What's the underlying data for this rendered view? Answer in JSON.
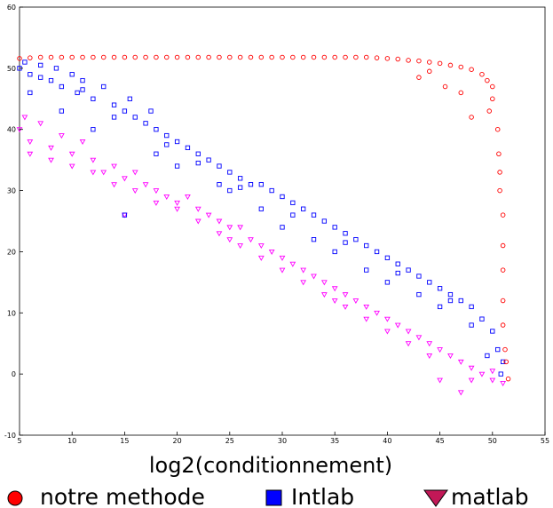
{
  "chart_data": {
    "type": "scatter",
    "title": "",
    "xlabel": "log2(conditionnement)",
    "ylabel": "",
    "xlim": [
      5,
      55
    ],
    "ylim": [
      -10,
      60
    ],
    "xticks": [
      5,
      10,
      15,
      20,
      25,
      30,
      35,
      40,
      45,
      50,
      55
    ],
    "yticks": [
      -10,
      0,
      10,
      20,
      30,
      40,
      50,
      60
    ],
    "grid": false,
    "legend_position": "bottom",
    "series": [
      {
        "name": "notre methode",
        "marker": "circle",
        "color": "#ff0000",
        "points": [
          [
            5,
            51.6
          ],
          [
            6,
            51.7
          ],
          [
            7,
            51.8
          ],
          [
            8,
            51.8
          ],
          [
            9,
            51.8
          ],
          [
            10,
            51.8
          ],
          [
            11,
            51.8
          ],
          [
            12,
            51.8
          ],
          [
            13,
            51.8
          ],
          [
            14,
            51.8
          ],
          [
            15,
            51.8
          ],
          [
            16,
            51.8
          ],
          [
            17,
            51.8
          ],
          [
            18,
            51.8
          ],
          [
            19,
            51.8
          ],
          [
            20,
            51.8
          ],
          [
            21,
            51.8
          ],
          [
            22,
            51.8
          ],
          [
            23,
            51.8
          ],
          [
            24,
            51.8
          ],
          [
            25,
            51.8
          ],
          [
            26,
            51.8
          ],
          [
            27,
            51.8
          ],
          [
            28,
            51.8
          ],
          [
            29,
            51.8
          ],
          [
            30,
            51.8
          ],
          [
            31,
            51.8
          ],
          [
            32,
            51.8
          ],
          [
            33,
            51.8
          ],
          [
            34,
            51.8
          ],
          [
            35,
            51.8
          ],
          [
            36,
            51.8
          ],
          [
            37,
            51.8
          ],
          [
            38,
            51.8
          ],
          [
            39,
            51.7
          ],
          [
            40,
            51.6
          ],
          [
            41,
            51.5
          ],
          [
            42,
            51.3
          ],
          [
            43,
            51.2
          ],
          [
            44,
            51
          ],
          [
            45,
            50.8
          ],
          [
            46,
            50.5
          ],
          [
            47,
            50.2
          ],
          [
            48,
            49.8
          ],
          [
            49,
            49
          ],
          [
            49.5,
            48
          ],
          [
            50,
            47
          ],
          [
            50,
            45
          ],
          [
            50.5,
            40
          ],
          [
            50.6,
            36
          ],
          [
            50.7,
            33
          ],
          [
            50.7,
            30
          ],
          [
            51,
            26
          ],
          [
            51,
            21
          ],
          [
            51,
            17
          ],
          [
            51,
            12
          ],
          [
            51,
            8
          ],
          [
            51.2,
            4
          ],
          [
            51.3,
            2
          ],
          [
            51.5,
            -0.8
          ],
          [
            48,
            42
          ],
          [
            49.7,
            43
          ],
          [
            45.5,
            47
          ],
          [
            44,
            49.5
          ],
          [
            43,
            48.5
          ],
          [
            47,
            46
          ]
        ]
      },
      {
        "name": "Intlab",
        "marker": "square",
        "color": "#0000ff",
        "points": [
          [
            5,
            50
          ],
          [
            5.5,
            51
          ],
          [
            6,
            49
          ],
          [
            7,
            50.5
          ],
          [
            8,
            48
          ],
          [
            8.5,
            50
          ],
          [
            9,
            47
          ],
          [
            10,
            49
          ],
          [
            10.5,
            46
          ],
          [
            11,
            48
          ],
          [
            12,
            45
          ],
          [
            13,
            47
          ],
          [
            14,
            44
          ],
          [
            15,
            43
          ],
          [
            15.5,
            45
          ],
          [
            16,
            42
          ],
          [
            17,
            41
          ],
          [
            17.5,
            43
          ],
          [
            18,
            40
          ],
          [
            19,
            39
          ],
          [
            20,
            38
          ],
          [
            21,
            37
          ],
          [
            22,
            36
          ],
          [
            23,
            35
          ],
          [
            24,
            34
          ],
          [
            25,
            33
          ],
          [
            26,
            32
          ],
          [
            27,
            31
          ],
          [
            28,
            31
          ],
          [
            29,
            30
          ],
          [
            30,
            29
          ],
          [
            31,
            28
          ],
          [
            32,
            27
          ],
          [
            33,
            26
          ],
          [
            34,
            25
          ],
          [
            35,
            24
          ],
          [
            36,
            23
          ],
          [
            37,
            22
          ],
          [
            38,
            21
          ],
          [
            39,
            20
          ],
          [
            40,
            19
          ],
          [
            41,
            18
          ],
          [
            42,
            17
          ],
          [
            43,
            16
          ],
          [
            44,
            15
          ],
          [
            45,
            14
          ],
          [
            46,
            13
          ],
          [
            47,
            12
          ],
          [
            48,
            11
          ],
          [
            49,
            9
          ],
          [
            50,
            7
          ],
          [
            50.5,
            4
          ],
          [
            51,
            2
          ],
          [
            15,
            26
          ],
          [
            20,
            34
          ],
          [
            25,
            30
          ],
          [
            30,
            24
          ],
          [
            35,
            20
          ],
          [
            40,
            15
          ],
          [
            45,
            11
          ],
          [
            6,
            46
          ],
          [
            9,
            43
          ],
          [
            12,
            40
          ],
          [
            18,
            36
          ],
          [
            24,
            31
          ],
          [
            28,
            27
          ],
          [
            33,
            22
          ],
          [
            38,
            17
          ],
          [
            43,
            13
          ],
          [
            48,
            8
          ],
          [
            7,
            48.5
          ],
          [
            11,
            46.5
          ],
          [
            14,
            42
          ],
          [
            19,
            37.5
          ],
          [
            22,
            34.5
          ],
          [
            26,
            30.5
          ],
          [
            31,
            26
          ],
          [
            36,
            21.5
          ],
          [
            41,
            16.5
          ],
          [
            46,
            12
          ],
          [
            50.8,
            0
          ],
          [
            49.5,
            3
          ]
        ]
      },
      {
        "name": "matlab",
        "marker": "triangle-down",
        "color": "#ff00ff",
        "points": [
          [
            5,
            40
          ],
          [
            5.5,
            42
          ],
          [
            6,
            38
          ],
          [
            7,
            41
          ],
          [
            8,
            37
          ],
          [
            9,
            39
          ],
          [
            10,
            36
          ],
          [
            11,
            38
          ],
          [
            12,
            35
          ],
          [
            13,
            33
          ],
          [
            14,
            34
          ],
          [
            15,
            32
          ],
          [
            16,
            33
          ],
          [
            17,
            31
          ],
          [
            18,
            30
          ],
          [
            19,
            29
          ],
          [
            20,
            28
          ],
          [
            21,
            29
          ],
          [
            22,
            27
          ],
          [
            23,
            26
          ],
          [
            24,
            25
          ],
          [
            25,
            24
          ],
          [
            26,
            24
          ],
          [
            27,
            22
          ],
          [
            28,
            21
          ],
          [
            29,
            20
          ],
          [
            30,
            19
          ],
          [
            31,
            18
          ],
          [
            32,
            17
          ],
          [
            33,
            16
          ],
          [
            34,
            15
          ],
          [
            35,
            14
          ],
          [
            36,
            13
          ],
          [
            37,
            12
          ],
          [
            38,
            11
          ],
          [
            39,
            10
          ],
          [
            40,
            9
          ],
          [
            41,
            8
          ],
          [
            42,
            7
          ],
          [
            43,
            6
          ],
          [
            44,
            5
          ],
          [
            45,
            4
          ],
          [
            46,
            3
          ],
          [
            47,
            2
          ],
          [
            48,
            1
          ],
          [
            49,
            0
          ],
          [
            50,
            -1
          ],
          [
            51,
            -1.5
          ],
          [
            47,
            -3
          ],
          [
            45,
            -1
          ],
          [
            8,
            35
          ],
          [
            12,
            33
          ],
          [
            16,
            30
          ],
          [
            20,
            27
          ],
          [
            24,
            23
          ],
          [
            28,
            19
          ],
          [
            32,
            15
          ],
          [
            36,
            11
          ],
          [
            40,
            7
          ],
          [
            44,
            3
          ],
          [
            6,
            36
          ],
          [
            10,
            34
          ],
          [
            14,
            31
          ],
          [
            18,
            28
          ],
          [
            22,
            25
          ],
          [
            26,
            21
          ],
          [
            30,
            17
          ],
          [
            34,
            13
          ],
          [
            38,
            9
          ],
          [
            42,
            5
          ],
          [
            15,
            26
          ],
          [
            25,
            22
          ],
          [
            35,
            12
          ],
          [
            48,
            -1
          ],
          [
            50,
            0.5
          ]
        ]
      }
    ]
  }
}
